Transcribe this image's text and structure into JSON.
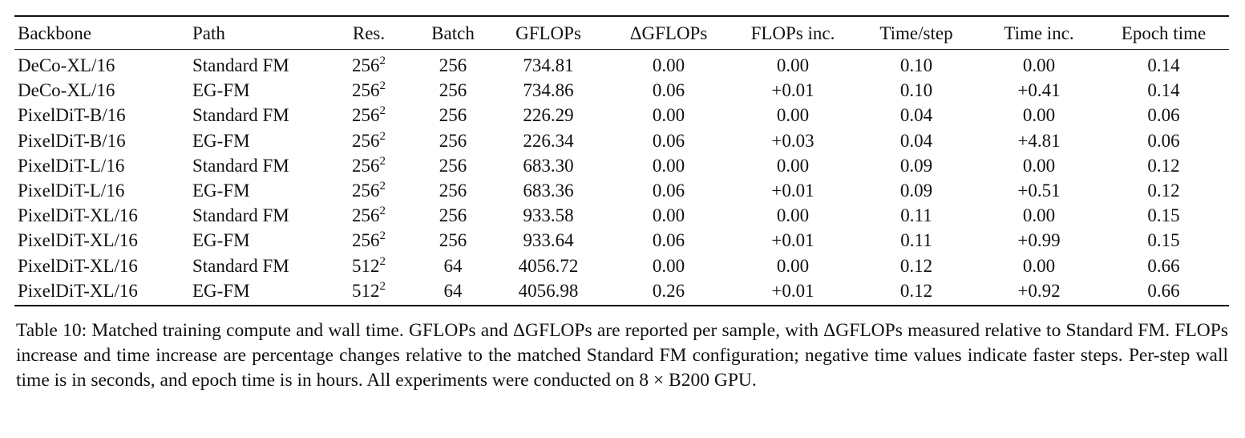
{
  "table": {
    "headers": [
      "Backbone",
      "Path",
      "Res.",
      "Batch",
      "GFLOPs",
      "ΔGFLOPs",
      "FLOPs inc.",
      "Time/step",
      "Time inc.",
      "Epoch time"
    ],
    "rows": [
      [
        "DeCo-XL/16",
        "Standard FM",
        "256",
        "256",
        "734.81",
        "0.00",
        "0.00",
        "0.10",
        "0.00",
        "0.14"
      ],
      [
        "DeCo-XL/16",
        "EG-FM",
        "256",
        "256",
        "734.86",
        "0.06",
        "+0.01",
        "0.10",
        "+0.41",
        "0.14"
      ],
      [
        "PixelDiT-B/16",
        "Standard FM",
        "256",
        "256",
        "226.29",
        "0.00",
        "0.00",
        "0.04",
        "0.00",
        "0.06"
      ],
      [
        "PixelDiT-B/16",
        "EG-FM",
        "256",
        "256",
        "226.34",
        "0.06",
        "+0.03",
        "0.04",
        "+4.81",
        "0.06"
      ],
      [
        "PixelDiT-L/16",
        "Standard FM",
        "256",
        "256",
        "683.30",
        "0.00",
        "0.00",
        "0.09",
        "0.00",
        "0.12"
      ],
      [
        "PixelDiT-L/16",
        "EG-FM",
        "256",
        "256",
        "683.36",
        "0.06",
        "+0.01",
        "0.09",
        "+0.51",
        "0.12"
      ],
      [
        "PixelDiT-XL/16",
        "Standard FM",
        "256",
        "256",
        "933.58",
        "0.00",
        "0.00",
        "0.11",
        "0.00",
        "0.15"
      ],
      [
        "PixelDiT-XL/16",
        "EG-FM",
        "256",
        "256",
        "933.64",
        "0.06",
        "+0.01",
        "0.11",
        "+0.99",
        "0.15"
      ],
      [
        "PixelDiT-XL/16",
        "Standard FM",
        "512",
        "64",
        "4056.72",
        "0.00",
        "0.00",
        "0.12",
        "0.00",
        "0.66"
      ],
      [
        "PixelDiT-XL/16",
        "EG-FM",
        "512",
        "64",
        "4056.98",
        "0.26",
        "+0.01",
        "0.12",
        "+0.92",
        "0.66"
      ]
    ],
    "res_exponent": "2"
  },
  "caption": {
    "text": "Table 10: Matched training compute and wall time. GFLOPs and ΔGFLOPs are reported per sample, with ΔGFLOPs measured relative to Standard FM. FLOPs increase and time increase are percentage changes relative to the matched Standard FM configuration; negative time values indicate faster steps. Per-step wall time is in seconds, and epoch time is in hours. All experiments were conducted on 8 × B200 GPU."
  }
}
